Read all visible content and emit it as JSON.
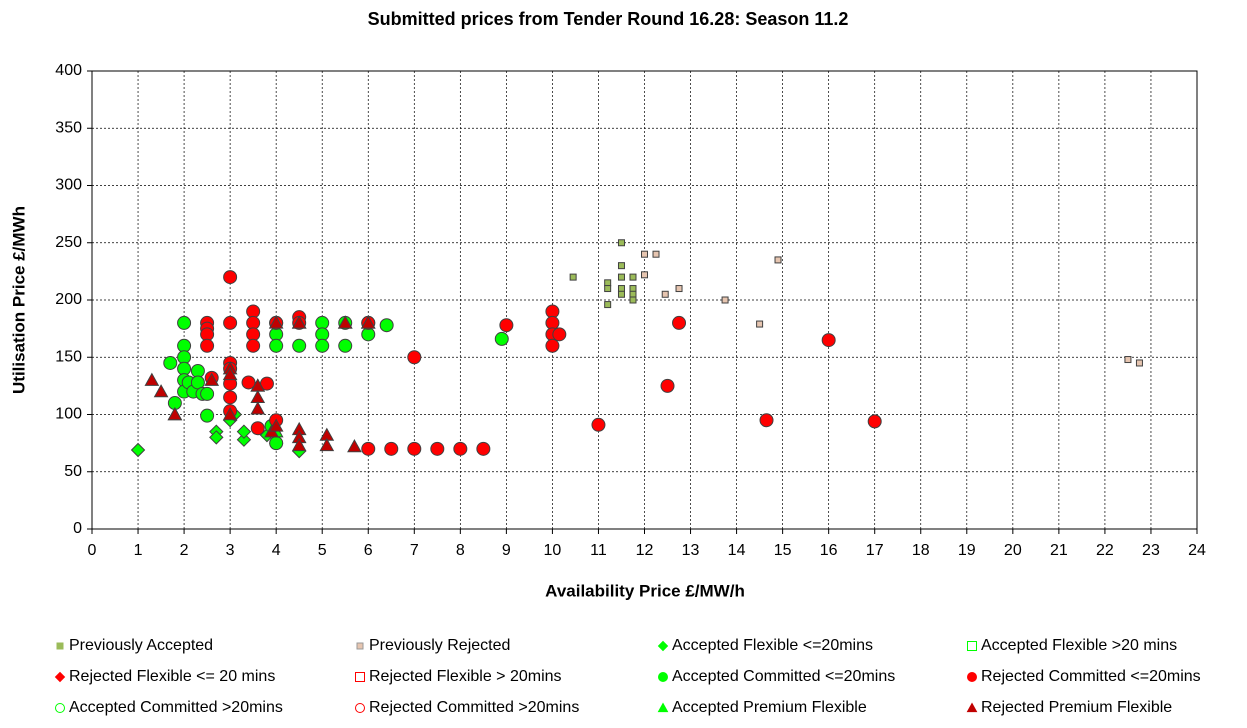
{
  "chart_data": {
    "type": "scatter",
    "title": "Submitted prices from Tender Round 16.28: Season 11.2",
    "x_label": "Availability Price £/MW/h",
    "y_label": "Utilisation Price £/MWh",
    "xlim": [
      0,
      24
    ],
    "xticks": [
      0,
      1,
      2,
      3,
      4,
      5,
      6,
      7,
      8,
      9,
      10,
      11,
      12,
      13,
      14,
      15,
      16,
      17,
      18,
      19,
      20,
      21,
      22,
      23,
      24
    ],
    "ylim": [
      0,
      400
    ],
    "yticks": [
      0,
      50,
      100,
      150,
      200,
      250,
      300,
      350,
      400
    ],
    "grid": true,
    "legend": "bottom",
    "series": [
      {
        "name": "Previously Accepted",
        "color": "#9bbb59",
        "marker": "small-square",
        "filled": true,
        "x": [
          10.45,
          11.2,
          11.2,
          11.2,
          11.5,
          11.5,
          11.5,
          11.5,
          11.5,
          11.75,
          11.75,
          11.75,
          11.75
        ],
        "y": [
          220,
          215,
          210,
          196,
          250,
          230,
          220,
          210,
          205,
          220,
          210,
          205,
          200
        ]
      },
      {
        "name": "Previously Rejected",
        "color": "#e6c5b0",
        "marker": "small-square",
        "filled": true,
        "x": [
          12,
          12.25,
          12,
          12.45,
          12.75,
          13.75,
          14.5,
          14.9,
          22.5,
          22.75
        ],
        "y": [
          240,
          240,
          222,
          205,
          210,
          200,
          179,
          235,
          148,
          145
        ]
      },
      {
        "name": "Accepted Flexible <=20mins",
        "color": "#00ff00",
        "marker": "diamond",
        "filled": true,
        "x": [
          1,
          2.7,
          2.7,
          3,
          3.1,
          3.3,
          3.3,
          3.8,
          4,
          4.5
        ],
        "y": [
          69,
          85,
          80,
          95,
          100,
          78,
          85,
          82,
          75,
          68
        ]
      },
      {
        "name": "Accepted Flexible >20 mins",
        "color": "#00ff00",
        "marker": "square",
        "filled": false,
        "x": [],
        "y": []
      },
      {
        "name": "Rejected Flexible <= 20 mins",
        "color": "#ff0000",
        "marker": "diamond",
        "filled": true,
        "x": [],
        "y": []
      },
      {
        "name": "Rejected Flexible > 20mins",
        "color": "#ff0000",
        "marker": "square",
        "filled": false,
        "x": [],
        "y": []
      },
      {
        "name": "Accepted Committed <=20mins",
        "color": "#00ff00",
        "marker": "circle",
        "filled": true,
        "x": [
          1.7,
          1.8,
          2,
          2,
          2,
          2,
          2,
          2,
          2.1,
          2.2,
          2.3,
          2.3,
          2.4,
          2.5,
          2.5,
          3.9,
          4,
          4,
          4,
          4,
          4.5,
          5,
          5,
          5,
          5.5,
          5.5,
          6,
          6,
          6.4,
          8.9
        ],
        "y": [
          145,
          110,
          180,
          160,
          150,
          140,
          130,
          120,
          128,
          120,
          138,
          128,
          118,
          118,
          99,
          90,
          75,
          180,
          170,
          160,
          160,
          180,
          170,
          160,
          180,
          160,
          180,
          170,
          178,
          166
        ]
      },
      {
        "name": "Rejected Committed <=20mins",
        "color": "#ff0000",
        "marker": "circle",
        "filled": true,
        "x": [
          2.5,
          2.5,
          2.5,
          2.5,
          2.6,
          3,
          3,
          3,
          3,
          3,
          3,
          3,
          3.4,
          3.5,
          3.5,
          3.5,
          3.5,
          3.6,
          3.8,
          4,
          4,
          4.5,
          4.5,
          6,
          6,
          6.5,
          7,
          7,
          7.5,
          8,
          8.5,
          9,
          10,
          10,
          10,
          10,
          10.15,
          11,
          12.5,
          12.75,
          14.65,
          16,
          17
        ],
        "y": [
          180,
          175,
          170,
          160,
          132,
          220,
          180,
          145,
          140,
          127,
          115,
          103,
          128,
          190,
          180,
          170,
          160,
          88,
          127,
          180,
          95,
          185,
          180,
          180,
          70,
          70,
          150,
          70,
          70,
          70,
          70,
          178,
          190,
          180,
          170,
          160,
          170,
          91,
          125,
          180,
          95,
          165,
          94
        ]
      },
      {
        "name": "Accepted Committed >20mins",
        "color": "#00ff00",
        "marker": "circle",
        "filled": false,
        "x": [],
        "y": []
      },
      {
        "name": "Rejected Committed >20mins",
        "color": "#ff0000",
        "marker": "circle",
        "filled": false,
        "x": [],
        "y": []
      },
      {
        "name": "Accepted Premium Flexible",
        "color": "#00ff00",
        "marker": "triangle",
        "filled": true,
        "x": [
          1.8,
          3.6,
          4,
          4.5,
          5.5,
          6
        ],
        "y": [
          100,
          125,
          85,
          180,
          180,
          180
        ]
      },
      {
        "name": "Rejected Premium Flexible",
        "color": "#c00000",
        "marker": "triangle",
        "filled": true,
        "x": [
          1.3,
          1.5,
          1.8,
          2.6,
          3,
          3,
          3,
          3.6,
          3.6,
          3.6,
          3.9,
          4,
          4,
          4.5,
          4.5,
          4.5,
          4.5,
          5.1,
          5.1,
          5.7,
          5.5,
          6
        ],
        "y": [
          130,
          120,
          100,
          130,
          140,
          135,
          100,
          125,
          115,
          105,
          85,
          180,
          90,
          180,
          87,
          80,
          73,
          82,
          73,
          72,
          180,
          180
        ]
      }
    ]
  }
}
